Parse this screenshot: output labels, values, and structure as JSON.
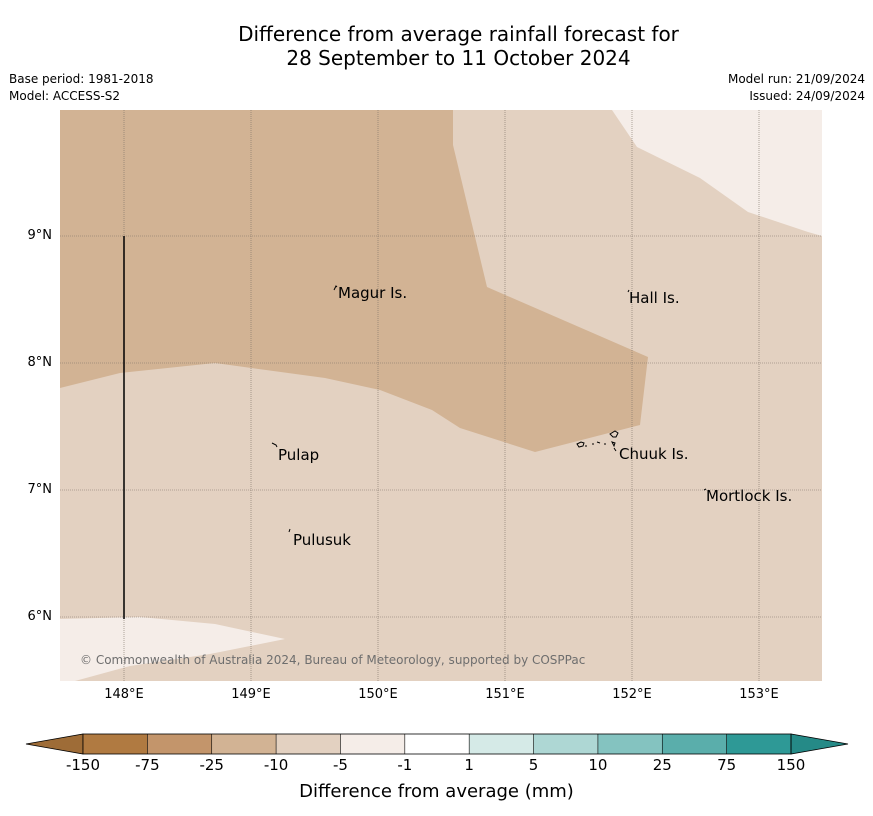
{
  "header": {
    "title_line1": "Difference from average rainfall forecast for",
    "title_line2": "28 September to 11 October 2024",
    "base_period": "Base period: 1981-2018",
    "model": "Model: ACCESS-S2",
    "model_run": "Model run: 21/09/2024",
    "issued": "Issued: 24/09/2024"
  },
  "map": {
    "lat_labels": [
      "9°N",
      "8°N",
      "7°N",
      "6°N"
    ],
    "lon_labels": [
      "148°E",
      "149°E",
      "150°E",
      "151°E",
      "152°E",
      "153°E"
    ],
    "places": [
      "Magur Is.",
      "Hall Is.",
      "Pulap",
      "Chuuk Is.",
      "Mortlock Is.",
      "Pulusuk"
    ],
    "copyright": "© Commonwealth of Australia 2024, Bureau of Meteorology, supported by COSPPac",
    "colors": {
      "lt_-25": "#d2b394",
      "-10_to_-5": "#e3d1c1",
      "-5_to_-1": "#f5ede8"
    }
  },
  "colorbar": {
    "title": "Difference from average (mm)",
    "tick_labels": [
      "-150",
      "-75",
      "-25",
      "-10",
      "-5",
      "-1",
      "1",
      "5",
      "10",
      "25",
      "75",
      "150"
    ],
    "colors": [
      "#b07a41",
      "#c3956b",
      "#d2b394",
      "#e3d1c1",
      "#f5ede8",
      "#ffffff",
      "#d5eae7",
      "#aed7d4",
      "#84c3c0",
      "#5aaeab",
      "#2e9996"
    ],
    "under_color": "#9e6c37",
    "over_color": "#258a87"
  }
}
